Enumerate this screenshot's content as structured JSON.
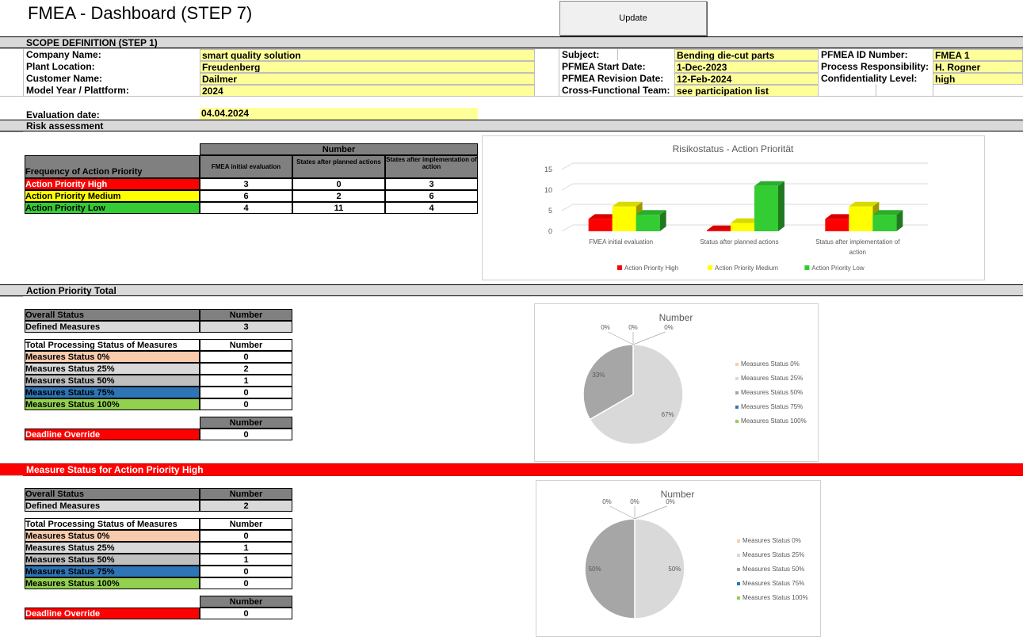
{
  "title": "FMEA - Dashboard (STEP 7)",
  "update_label": "Update",
  "scope": {
    "heading": "SCOPE DEFINITION (STEP 1)",
    "rows": [
      {
        "label": "Company Name:",
        "value": "smart quality solution"
      },
      {
        "label": "Plant Location:",
        "value": "Freudenberg"
      },
      {
        "label": "Customer Name:",
        "value": "Dailmer"
      },
      {
        "label": "Model Year / Plattform:",
        "value": "2024"
      }
    ],
    "rows2": [
      {
        "label": "Subject:",
        "value": "Bending die-cut parts"
      },
      {
        "label": "PFMEA Start Date:",
        "value": "1-Dec-2023"
      },
      {
        "label": "PFMEA Revision Date:",
        "value": "12-Feb-2024"
      },
      {
        "label": "Cross-Functional Team:",
        "value": "see participation list"
      }
    ],
    "rows3": [
      {
        "label": "PFMEA ID Number:",
        "value": "FMEA 1"
      },
      {
        "label": "Process Responsibility:",
        "value": "H. Rogner"
      },
      {
        "label": "Confidentiality Level:",
        "value": "high"
      }
    ]
  },
  "evaluation": {
    "label": "Evaluation date:",
    "value": "04.04.2024"
  },
  "risk": {
    "heading": "Risk assessment",
    "number_header": "Number",
    "freq_label": "Frequency of Action Priority",
    "cols": [
      "FMEA initial evaluation",
      "States after planned actions",
      "States after implementation of action"
    ],
    "rows": [
      {
        "label": "Action Priority High",
        "values": [
          "3",
          "0",
          "3"
        ],
        "color": "#ff0000",
        "text": "#ffffff"
      },
      {
        "label": "Action Priority Medium",
        "values": [
          "6",
          "2",
          "6"
        ],
        "color": "#ffff00",
        "text": "#000000"
      },
      {
        "label": "Action Priority Low",
        "values": [
          "4",
          "11",
          "4"
        ],
        "color": "#33cc33",
        "text": "#000000"
      }
    ]
  },
  "chart_data": [
    {
      "type": "bar",
      "title": "Risikostatus - Action Priorität",
      "categories": [
        "FMEA initial evaluation",
        "Status after planned actions",
        "Status after implementation of action"
      ],
      "series": [
        {
          "name": "Action Priority High",
          "values": [
            3,
            0,
            3
          ],
          "color": "#ff0000"
        },
        {
          "name": "Action Priority Medium",
          "values": [
            6,
            2,
            6
          ],
          "color": "#ffff00"
        },
        {
          "name": "Action Priority Low",
          "values": [
            4,
            11,
            4
          ],
          "color": "#33cc33"
        }
      ],
      "yticks": [
        "0",
        "5",
        "10",
        "15"
      ],
      "ylim": [
        0,
        15
      ],
      "legend": "bottom"
    },
    {
      "type": "pie",
      "title": "Number",
      "labels": [
        "Measures Status 0%",
        "Measures Status 25%",
        "Measures Status 50%",
        "Measures Status 75%",
        "Measures Status 100%"
      ],
      "values": [
        0,
        2,
        1,
        0,
        0
      ],
      "percent_labels": [
        "0%",
        "67%",
        "33%",
        "0%",
        "0%"
      ],
      "colors": [
        "#f8cbad",
        "#d9d9d9",
        "#a6a6a6",
        "#2e75b6",
        "#92d050"
      ],
      "legend": "right"
    },
    {
      "type": "pie",
      "title": "Number",
      "labels": [
        "Measures Status 0%",
        "Measures Status 25%",
        "Measures Status 50%",
        "Measures Status 75%",
        "Measures Status 100%"
      ],
      "values": [
        0,
        1,
        1,
        0,
        0
      ],
      "percent_labels": [
        "0%",
        "50%",
        "50%",
        "0%",
        "0%"
      ],
      "colors": [
        "#f8cbad",
        "#d9d9d9",
        "#a6a6a6",
        "#2e75b6",
        "#92d050"
      ],
      "legend": "right"
    }
  ],
  "total": {
    "heading": "Action Priority Total",
    "overall_label": "Overall Status",
    "number": "Number",
    "defined_label": "Defined Measures",
    "defined_value": "3",
    "processing_label": "Total Processing Status of Measures",
    "status_rows": [
      {
        "label": "Measures Status 0%",
        "value": "0",
        "color": "#f8cbad",
        "text": "#000000"
      },
      {
        "label": "Measures Status 25%",
        "value": "2",
        "color": "#d9d9d9",
        "text": "#000000"
      },
      {
        "label": "Measures Status 50%",
        "value": "1",
        "color": "#bfbfbf",
        "text": "#000000"
      },
      {
        "label": "Measures Status 75%",
        "value": "0",
        "color": "#2e75b6",
        "text": "#000000"
      },
      {
        "label": "Measures Status 100%",
        "value": "0",
        "color": "#92d050",
        "text": "#000000"
      }
    ],
    "deadline_label": "Deadline Override",
    "deadline_value": "0"
  },
  "high": {
    "heading": "Measure Status for Action Priority High",
    "overall_label": "Overall Status",
    "number": "Number",
    "defined_label": "Defined Measures",
    "defined_value": "2",
    "processing_label": "Total Processing Status of Measures",
    "status_rows": [
      {
        "label": "Measures Status 0%",
        "value": "0",
        "color": "#f8cbad",
        "text": "#000000"
      },
      {
        "label": "Measures Status 25%",
        "value": "1",
        "color": "#d9d9d9",
        "text": "#000000"
      },
      {
        "label": "Measures Status 50%",
        "value": "1",
        "color": "#bfbfbf",
        "text": "#000000"
      },
      {
        "label": "Measures Status 75%",
        "value": "0",
        "color": "#2e75b6",
        "text": "#000000"
      },
      {
        "label": "Measures Status 100%",
        "value": "0",
        "color": "#92d050",
        "text": "#000000"
      }
    ],
    "deadline_label": "Deadline Override",
    "deadline_value": "0"
  }
}
